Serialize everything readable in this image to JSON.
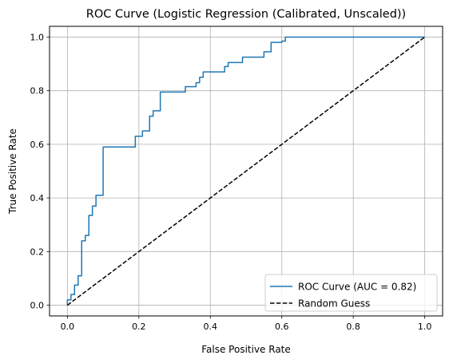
{
  "chart_data": {
    "type": "line",
    "title": "ROC Curve (Logistic Regression (Calibrated, Unscaled))",
    "xlabel": "False Positive Rate",
    "ylabel": "True Positive Rate",
    "xlim": [
      -0.05,
      1.05
    ],
    "ylim": [
      -0.04,
      1.04
    ],
    "xticks": [
      0.0,
      0.2,
      0.4,
      0.6,
      0.8,
      1.0
    ],
    "yticks": [
      0.0,
      0.2,
      0.4,
      0.6,
      0.8,
      1.0
    ],
    "xtick_labels": [
      "0.0",
      "0.2",
      "0.4",
      "0.6",
      "0.8",
      "1.0"
    ],
    "ytick_labels": [
      "0.0",
      "0.2",
      "0.4",
      "0.6",
      "0.8",
      "1.0"
    ],
    "grid": true,
    "legend_position": "bottom-right",
    "series": [
      {
        "name": "ROC Curve (AUC = 0.82)",
        "color": "#1f77b4",
        "style": "solid",
        "x": [
          0.0,
          0.0,
          0.01,
          0.01,
          0.02,
          0.02,
          0.03,
          0.03,
          0.04,
          0.04,
          0.05,
          0.05,
          0.06,
          0.06,
          0.07,
          0.07,
          0.08,
          0.08,
          0.1,
          0.1,
          0.19,
          0.19,
          0.21,
          0.21,
          0.23,
          0.23,
          0.24,
          0.24,
          0.26,
          0.26,
          0.33,
          0.33,
          0.36,
          0.36,
          0.37,
          0.37,
          0.38,
          0.38,
          0.44,
          0.44,
          0.45,
          0.45,
          0.49,
          0.49,
          0.55,
          0.55,
          0.57,
          0.57,
          0.6,
          0.6,
          0.61,
          0.61,
          1.0
        ],
        "y": [
          0.0,
          0.02,
          0.02,
          0.04,
          0.04,
          0.075,
          0.075,
          0.11,
          0.11,
          0.24,
          0.24,
          0.26,
          0.26,
          0.335,
          0.335,
          0.37,
          0.37,
          0.41,
          0.41,
          0.59,
          0.59,
          0.63,
          0.63,
          0.65,
          0.65,
          0.705,
          0.705,
          0.725,
          0.725,
          0.795,
          0.795,
          0.815,
          0.815,
          0.83,
          0.83,
          0.85,
          0.85,
          0.87,
          0.87,
          0.89,
          0.89,
          0.905,
          0.905,
          0.925,
          0.925,
          0.945,
          0.945,
          0.98,
          0.98,
          0.985,
          0.985,
          1.0,
          1.0
        ]
      },
      {
        "name": "Random Guess",
        "color": "#000000",
        "style": "dashed",
        "x": [
          0.0,
          1.0
        ],
        "y": [
          0.0,
          1.0
        ]
      }
    ]
  }
}
